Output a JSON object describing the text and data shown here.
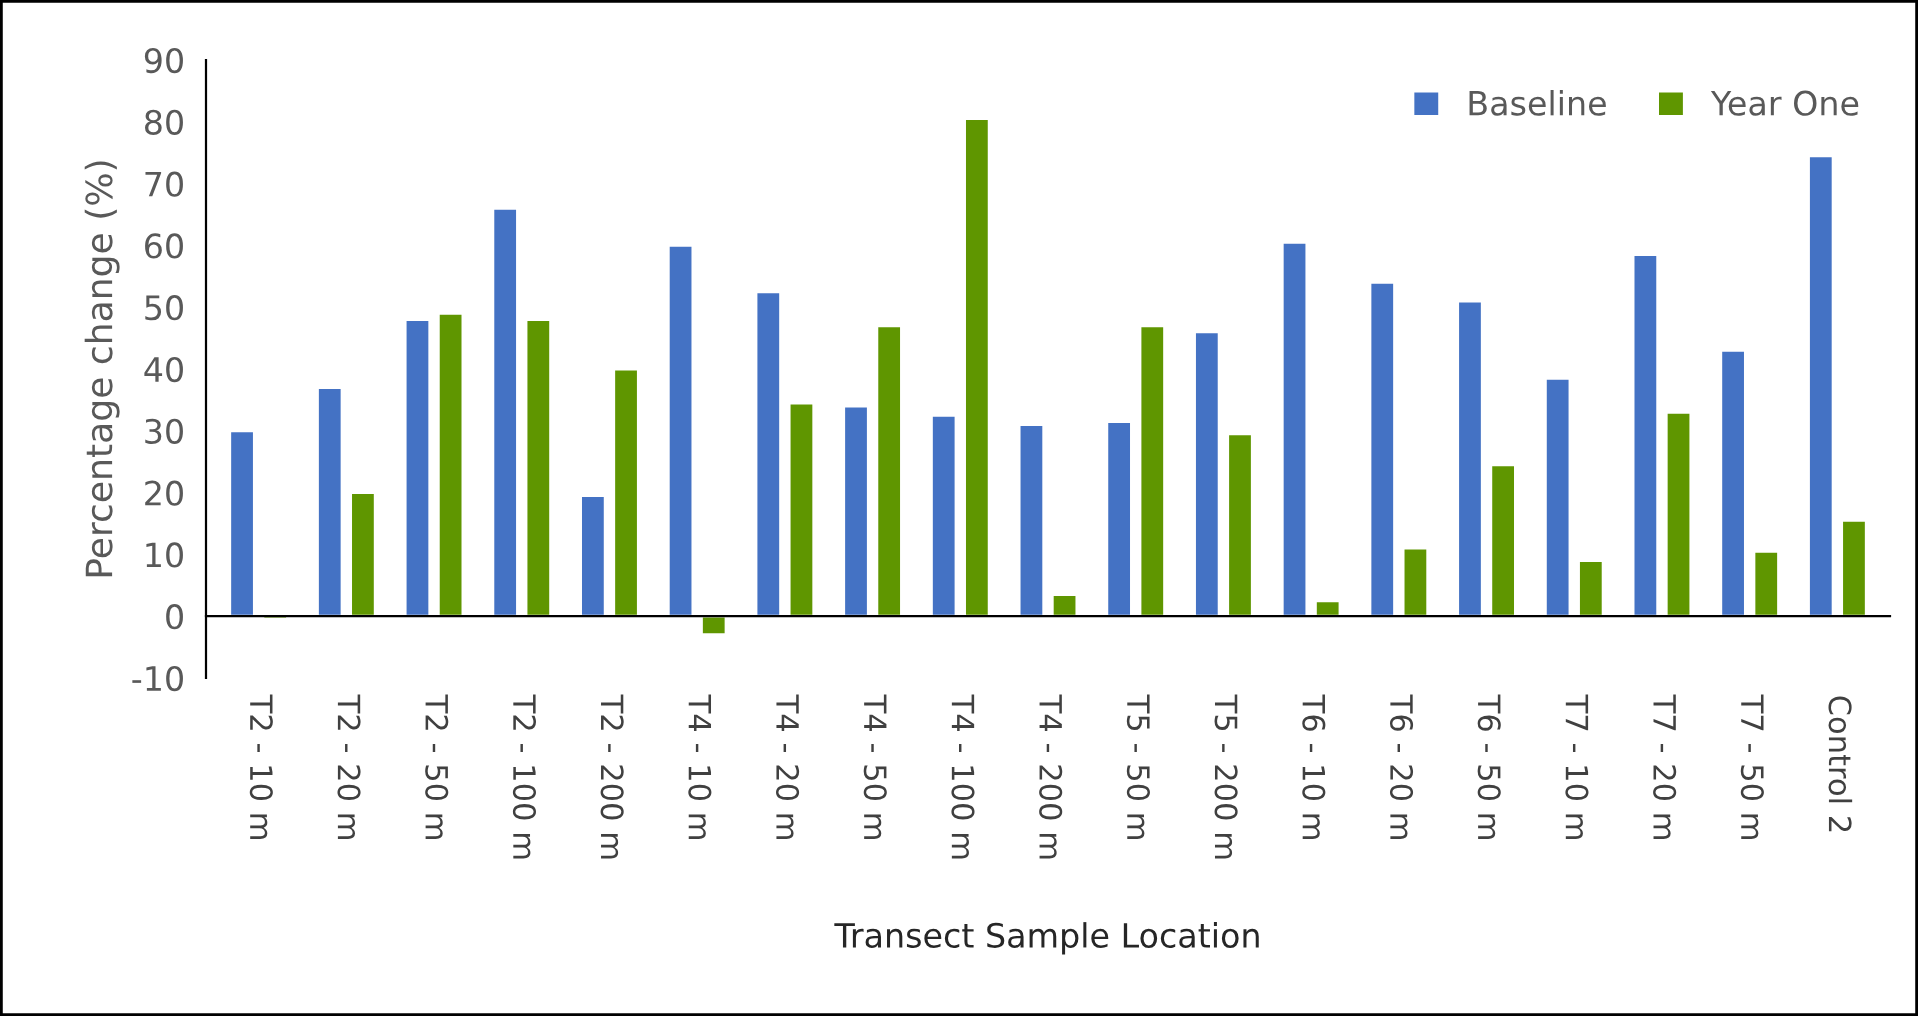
{
  "chart_data": {
    "type": "bar",
    "xlabel": "Transect Sample Location",
    "ylabel": "Percentage change (%)",
    "categories": [
      "T2 - 10 m",
      "T2 - 20 m",
      "T2 - 50 m",
      "T2 - 100 m",
      "T2 - 200 m",
      "T4 - 10 m",
      "T4 - 20 m",
      "T4 - 50 m",
      "T4 - 100 m",
      "T4 - 200 m",
      "T5 - 50 m",
      "T5 - 200 m",
      "T6 - 10 m",
      "T6 - 20 m",
      "T6 - 50 m",
      "T7 - 10 m",
      "T7 - 20 m",
      "T7 - 50 m",
      "Control 2"
    ],
    "series": [
      {
        "name": "Baseline",
        "color": "#4472c4",
        "values": [
          30,
          37,
          48,
          66,
          19.5,
          60,
          52.5,
          34,
          32.5,
          31,
          31.5,
          46,
          60.5,
          54,
          51,
          38.5,
          58.5,
          43,
          74.5
        ]
      },
      {
        "name": "Year One",
        "color": "#5f9600",
        "values": [
          -0.5,
          20,
          49,
          48,
          40,
          -3,
          34.5,
          47,
          80.5,
          3.5,
          47,
          29.5,
          2.5,
          11,
          24.5,
          9,
          33,
          10.5,
          15.5
        ]
      }
    ],
    "ylim": [
      -10,
      90
    ],
    "yticks": [
      -10,
      0,
      10,
      20,
      30,
      40,
      50,
      60,
      70,
      80,
      90
    ],
    "grid": false,
    "legend": "top right"
  }
}
